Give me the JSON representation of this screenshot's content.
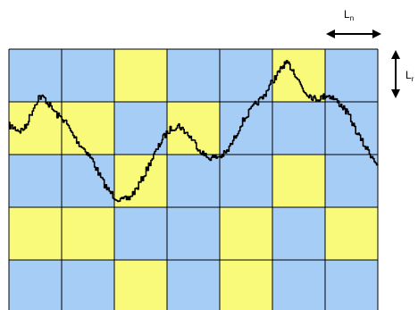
{
  "labels": {
    "horizontal_length": {
      "main": "L",
      "sub": "n"
    },
    "vertical_length": {
      "main": "L",
      "sub": "r"
    }
  },
  "colors": {
    "cell_blue": "#a6cdf6",
    "cell_yellow": "#fafa7a",
    "grid_line": "#000000",
    "profile_line": "#000000"
  },
  "grid": {
    "rows": 5,
    "cols": 7,
    "pattern": [
      [
        "blue",
        "blue",
        "yellow",
        "blue",
        "blue",
        "yellow",
        "blue"
      ],
      [
        "yellow",
        "yellow",
        "blue",
        "yellow",
        "blue",
        "blue",
        "blue"
      ],
      [
        "blue",
        "blue",
        "yellow",
        "blue",
        "blue",
        "yellow",
        "blue"
      ],
      [
        "yellow",
        "yellow",
        "blue",
        "blue",
        "yellow",
        "blue",
        "yellow"
      ],
      [
        "blue",
        "blue",
        "yellow",
        "blue",
        "yellow",
        "blue",
        "blue"
      ]
    ]
  },
  "profile": {
    "description_free": true,
    "control_points": [
      [
        0.0,
        0.29
      ],
      [
        0.015,
        0.3
      ],
      [
        0.03,
        0.31
      ],
      [
        0.045,
        0.295
      ],
      [
        0.06,
        0.24
      ],
      [
        0.08,
        0.18
      ],
      [
        0.095,
        0.185
      ],
      [
        0.11,
        0.215
      ],
      [
        0.13,
        0.25
      ],
      [
        0.15,
        0.27
      ],
      [
        0.17,
        0.32
      ],
      [
        0.19,
        0.36
      ],
      [
        0.21,
        0.39
      ],
      [
        0.225,
        0.42
      ],
      [
        0.245,
        0.48
      ],
      [
        0.265,
        0.53
      ],
      [
        0.285,
        0.56
      ],
      [
        0.305,
        0.575
      ],
      [
        0.325,
        0.565
      ],
      [
        0.345,
        0.53
      ],
      [
        0.365,
        0.48
      ],
      [
        0.385,
        0.42
      ],
      [
        0.405,
        0.37
      ],
      [
        0.42,
        0.33
      ],
      [
        0.44,
        0.3
      ],
      [
        0.46,
        0.29
      ],
      [
        0.475,
        0.31
      ],
      [
        0.495,
        0.34
      ],
      [
        0.515,
        0.38
      ],
      [
        0.535,
        0.41
      ],
      [
        0.555,
        0.412
      ],
      [
        0.575,
        0.405
      ],
      [
        0.59,
        0.39
      ],
      [
        0.61,
        0.34
      ],
      [
        0.63,
        0.28
      ],
      [
        0.65,
        0.24
      ],
      [
        0.67,
        0.205
      ],
      [
        0.69,
        0.18
      ],
      [
        0.705,
        0.14
      ],
      [
        0.72,
        0.11
      ],
      [
        0.735,
        0.08
      ],
      [
        0.745,
        0.06
      ],
      [
        0.755,
        0.055
      ],
      [
        0.77,
        0.08
      ],
      [
        0.785,
        0.12
      ],
      [
        0.8,
        0.16
      ],
      [
        0.815,
        0.175
      ],
      [
        0.83,
        0.19
      ],
      [
        0.845,
        0.185
      ],
      [
        0.86,
        0.175
      ],
      [
        0.875,
        0.18
      ],
      [
        0.89,
        0.2
      ],
      [
        0.905,
        0.22
      ],
      [
        0.92,
        0.25
      ],
      [
        0.94,
        0.31
      ],
      [
        0.96,
        0.36
      ],
      [
        0.98,
        0.4
      ],
      [
        1.0,
        0.44
      ]
    ]
  }
}
